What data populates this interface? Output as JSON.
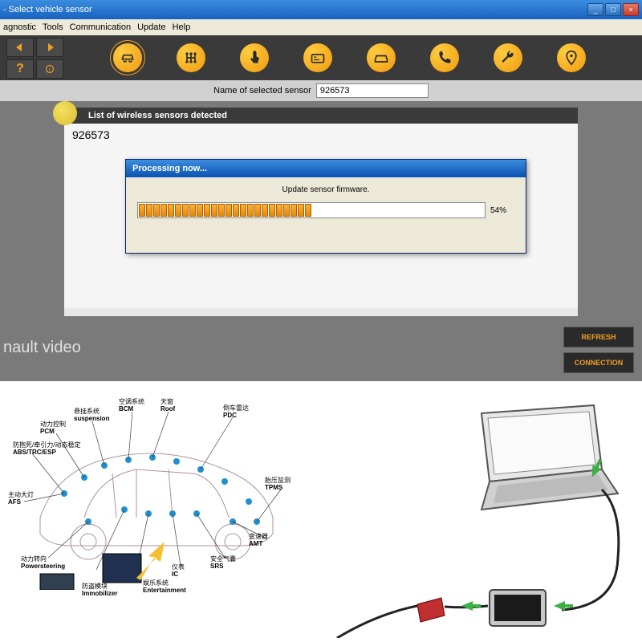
{
  "window": {
    "title": "- Select vehicle sensor",
    "minimize": "_",
    "maximize": "□",
    "close": "×"
  },
  "menu": {
    "diagnostic": "agnostic",
    "tools": "Tools",
    "communication": "Communication",
    "update": "Update",
    "help": "Help"
  },
  "nav": {
    "back": "←",
    "forward": "→",
    "help": "?",
    "info": "i"
  },
  "sensor_row": {
    "label": "Name of selected sensor",
    "value": "926573"
  },
  "list": {
    "header": "List of wireless sensors detected",
    "item_1": "926573"
  },
  "dialog": {
    "title": "Processing now...",
    "message": "Update sensor firmware.",
    "percent": 54,
    "percent_text": "54%",
    "total_segments": 44
  },
  "buttons": {
    "refresh": "REFRESH",
    "connection": "CONNECTION"
  },
  "watermark": "nault video",
  "car_labels": {
    "abs": {
      "cn": "防抱死/牵引力/动态稳定",
      "en": "ABS/TRC/ESP"
    },
    "pcm": {
      "cn": "动力控制",
      "en": "PCM"
    },
    "susp": {
      "cn": "悬挂系统",
      "en": "suspension"
    },
    "afs": {
      "cn": "主动大灯",
      "en": "AFS"
    },
    "bcm": {
      "cn": "空调系统",
      "en": "BCM"
    },
    "roof": {
      "cn": "天窗",
      "en": "Roof"
    },
    "pdc": {
      "cn": "倒车雷达",
      "en": "PDC"
    },
    "tpms": {
      "cn": "胎压监测",
      "en": "TPMS"
    },
    "amt": {
      "cn": "变速器",
      "en": "AMT"
    },
    "srs": {
      "cn": "安全气囊",
      "en": "SRS"
    },
    "ic": {
      "cn": "仪表",
      "en": "IC"
    },
    "ent": {
      "cn": "娱乐系统",
      "en": "Entertainment"
    },
    "immo": {
      "cn": "防盗模块",
      "en": "Immobilizer"
    },
    "ps": {
      "cn": "动力转向",
      "en": "Powersteering"
    }
  },
  "colors": {
    "titlebar_top": "#3b8de0",
    "titlebar_bottom": "#1862c0",
    "toolbar_bg": "#3a3a3a",
    "circle_btn": "#f0a020",
    "accent_text": "#f0a020",
    "content_bg": "#7a7a7a",
    "panel_bg": "#e8e8e8",
    "progress_fill": "#ffb030",
    "green_arrow": "#3cb043"
  }
}
